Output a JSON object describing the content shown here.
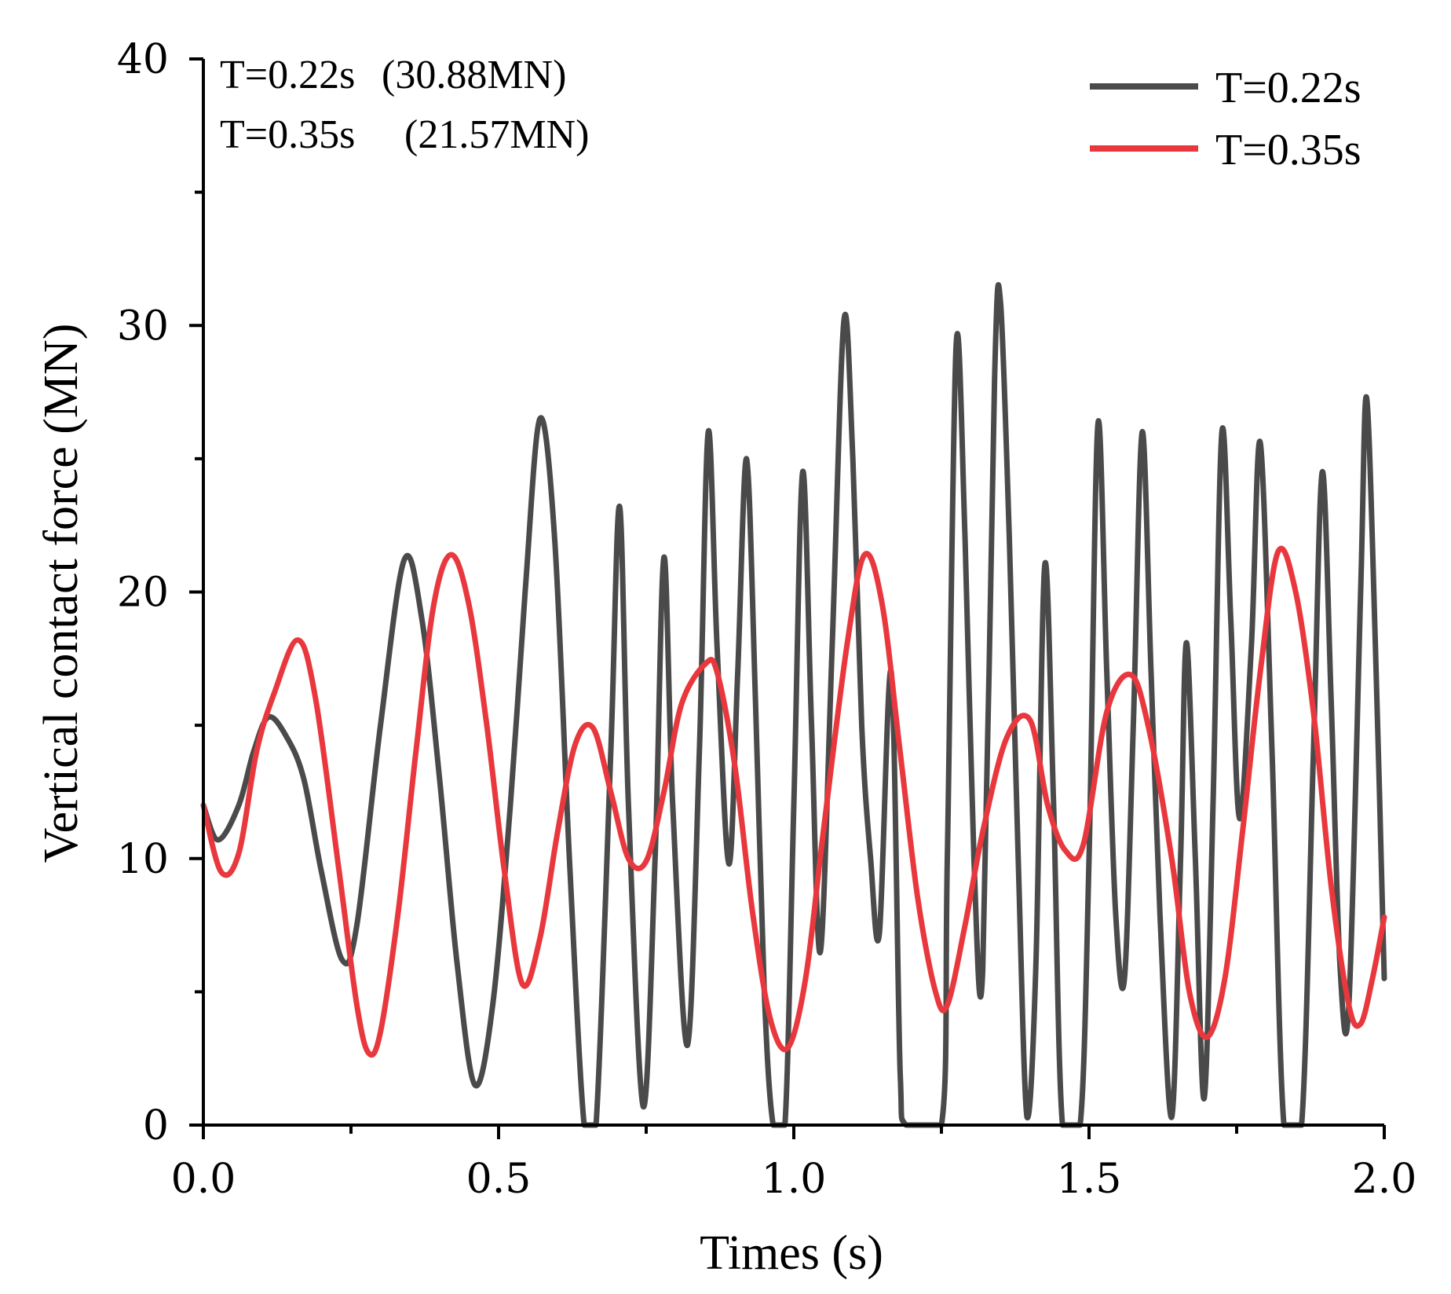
{
  "chart_data": {
    "type": "line",
    "xlabel": "Times (s)",
    "ylabel": "Vertical contact force (MN)",
    "xlim": [
      0.0,
      2.0
    ],
    "ylim": [
      0,
      40
    ],
    "x_major_ticks": [
      0.0,
      0.5,
      1.0,
      1.5,
      2.0
    ],
    "x_tick_labels": [
      "0.0",
      "0.5",
      "1.0",
      "1.5",
      "2.0"
    ],
    "x_minor_ticks": [
      0.25,
      0.75,
      1.25,
      1.75
    ],
    "y_major_ticks": [
      0,
      10,
      20,
      30,
      40
    ],
    "y_tick_labels": [
      "0",
      "10",
      "20",
      "30",
      "40"
    ],
    "y_minor_ticks": [
      5,
      15,
      25,
      35
    ],
    "grid": false,
    "legend_position": "top-right",
    "annotations": [
      {
        "label": "T=0.22s",
        "value": "(30.88MN)"
      },
      {
        "label": "T=0.35s",
        "value": "(21.57MN)"
      }
    ],
    "series": [
      {
        "name": "T=0.22s",
        "color": "#4a4a4a",
        "points": [
          [
            0.0,
            12.0
          ],
          [
            0.025,
            10.7
          ],
          [
            0.06,
            12.0
          ],
          [
            0.085,
            14.0
          ],
          [
            0.11,
            15.3
          ],
          [
            0.14,
            14.6
          ],
          [
            0.17,
            13.0
          ],
          [
            0.2,
            9.5
          ],
          [
            0.235,
            6.2
          ],
          [
            0.26,
            7.5
          ],
          [
            0.3,
            15.0
          ],
          [
            0.34,
            21.2
          ],
          [
            0.37,
            19.0
          ],
          [
            0.4,
            13.0
          ],
          [
            0.43,
            6.0
          ],
          [
            0.46,
            1.5
          ],
          [
            0.49,
            4.5
          ],
          [
            0.52,
            12.0
          ],
          [
            0.545,
            20.0
          ],
          [
            0.57,
            26.5
          ],
          [
            0.595,
            22.0
          ],
          [
            0.62,
            10.0
          ],
          [
            0.645,
            0.0
          ],
          [
            0.665,
            0.0
          ],
          [
            0.69,
            14.0
          ],
          [
            0.705,
            23.2
          ],
          [
            0.72,
            12.0
          ],
          [
            0.745,
            0.7
          ],
          [
            0.765,
            10.0
          ],
          [
            0.78,
            21.3
          ],
          [
            0.795,
            12.0
          ],
          [
            0.82,
            3.0
          ],
          [
            0.84,
            14.0
          ],
          [
            0.855,
            26.0
          ],
          [
            0.87,
            18.0
          ],
          [
            0.89,
            9.8
          ],
          [
            0.905,
            17.0
          ],
          [
            0.92,
            25.0
          ],
          [
            0.935,
            16.0
          ],
          [
            0.95,
            5.0
          ],
          [
            0.965,
            0.0
          ],
          [
            0.985,
            0.0
          ],
          [
            1.0,
            12.0
          ],
          [
            1.015,
            24.5
          ],
          [
            1.03,
            15.0
          ],
          [
            1.045,
            6.5
          ],
          [
            1.065,
            18.0
          ],
          [
            1.085,
            30.2
          ],
          [
            1.1,
            25.0
          ],
          [
            1.115,
            15.0
          ],
          [
            1.13,
            10.0
          ],
          [
            1.145,
            7.2
          ],
          [
            1.165,
            17.0
          ],
          [
            1.18,
            2.0
          ],
          [
            1.19,
            0.0
          ],
          [
            1.25,
            0.0
          ],
          [
            1.26,
            10.0
          ],
          [
            1.275,
            29.3
          ],
          [
            1.29,
            22.0
          ],
          [
            1.305,
            10.0
          ],
          [
            1.32,
            5.8
          ],
          [
            1.34,
            28.0
          ],
          [
            1.35,
            30.9
          ],
          [
            1.365,
            22.0
          ],
          [
            1.38,
            10.0
          ],
          [
            1.395,
            0.3
          ],
          [
            1.41,
            6.0
          ],
          [
            1.425,
            21.0
          ],
          [
            1.44,
            12.0
          ],
          [
            1.455,
            0.0
          ],
          [
            1.485,
            0.0
          ],
          [
            1.5,
            10.0
          ],
          [
            1.515,
            26.3
          ],
          [
            1.53,
            17.0
          ],
          [
            1.545,
            8.0
          ],
          [
            1.56,
            5.5
          ],
          [
            1.575,
            15.0
          ],
          [
            1.59,
            26.0
          ],
          [
            1.605,
            17.0
          ],
          [
            1.62,
            8.0
          ],
          [
            1.64,
            0.3
          ],
          [
            1.655,
            10.0
          ],
          [
            1.665,
            18.1
          ],
          [
            1.68,
            10.0
          ],
          [
            1.695,
            1.0
          ],
          [
            1.71,
            12.0
          ],
          [
            1.725,
            26.0
          ],
          [
            1.74,
            19.0
          ],
          [
            1.755,
            11.5
          ],
          [
            1.775,
            18.0
          ],
          [
            1.79,
            25.6
          ],
          [
            1.81,
            14.0
          ],
          [
            1.83,
            0.0
          ],
          [
            1.86,
            0.0
          ],
          [
            1.88,
            14.0
          ],
          [
            1.895,
            24.5
          ],
          [
            1.91,
            16.0
          ],
          [
            1.925,
            6.0
          ],
          [
            1.94,
            4.5
          ],
          [
            1.96,
            20.0
          ],
          [
            1.97,
            27.3
          ],
          [
            1.985,
            18.0
          ],
          [
            2.0,
            5.5
          ]
        ]
      },
      {
        "name": "T=0.35s",
        "color": "#e8383d",
        "points": [
          [
            0.0,
            12.0
          ],
          [
            0.03,
            9.5
          ],
          [
            0.06,
            10.2
          ],
          [
            0.09,
            14.0
          ],
          [
            0.12,
            16.2
          ],
          [
            0.16,
            18.2
          ],
          [
            0.19,
            16.0
          ],
          [
            0.23,
            9.5
          ],
          [
            0.26,
            4.5
          ],
          [
            0.28,
            2.7
          ],
          [
            0.3,
            3.5
          ],
          [
            0.33,
            8.0
          ],
          [
            0.36,
            14.0
          ],
          [
            0.39,
            19.5
          ],
          [
            0.42,
            21.4
          ],
          [
            0.45,
            19.5
          ],
          [
            0.48,
            15.0
          ],
          [
            0.51,
            9.5
          ],
          [
            0.54,
            5.3
          ],
          [
            0.57,
            7.0
          ],
          [
            0.6,
            11.0
          ],
          [
            0.63,
            14.3
          ],
          [
            0.66,
            14.9
          ],
          [
            0.69,
            12.5
          ],
          [
            0.72,
            10.0
          ],
          [
            0.75,
            9.9
          ],
          [
            0.78,
            12.5
          ],
          [
            0.81,
            15.8
          ],
          [
            0.85,
            17.3
          ],
          [
            0.87,
            17.0
          ],
          [
            0.9,
            13.5
          ],
          [
            0.93,
            8.0
          ],
          [
            0.96,
            4.0
          ],
          [
            0.99,
            2.9
          ],
          [
            1.02,
            5.5
          ],
          [
            1.05,
            11.0
          ],
          [
            1.09,
            18.0
          ],
          [
            1.12,
            21.4
          ],
          [
            1.15,
            19.5
          ],
          [
            1.18,
            14.0
          ],
          [
            1.21,
            8.5
          ],
          [
            1.24,
            5.0
          ],
          [
            1.26,
            4.5
          ],
          [
            1.29,
            7.5
          ],
          [
            1.32,
            11.0
          ],
          [
            1.36,
            14.5
          ],
          [
            1.4,
            15.2
          ],
          [
            1.43,
            12.0
          ],
          [
            1.46,
            10.3
          ],
          [
            1.49,
            10.5
          ],
          [
            1.53,
            15.5
          ],
          [
            1.57,
            16.9
          ],
          [
            1.6,
            15.0
          ],
          [
            1.64,
            10.0
          ],
          [
            1.67,
            5.0
          ],
          [
            1.7,
            3.3
          ],
          [
            1.73,
            5.5
          ],
          [
            1.76,
            11.0
          ],
          [
            1.79,
            17.0
          ],
          [
            1.82,
            21.5
          ],
          [
            1.85,
            20.0
          ],
          [
            1.88,
            15.5
          ],
          [
            1.91,
            9.0
          ],
          [
            1.94,
            4.5
          ],
          [
            1.96,
            3.8
          ],
          [
            1.98,
            5.5
          ],
          [
            2.0,
            7.8
          ]
        ]
      }
    ]
  }
}
